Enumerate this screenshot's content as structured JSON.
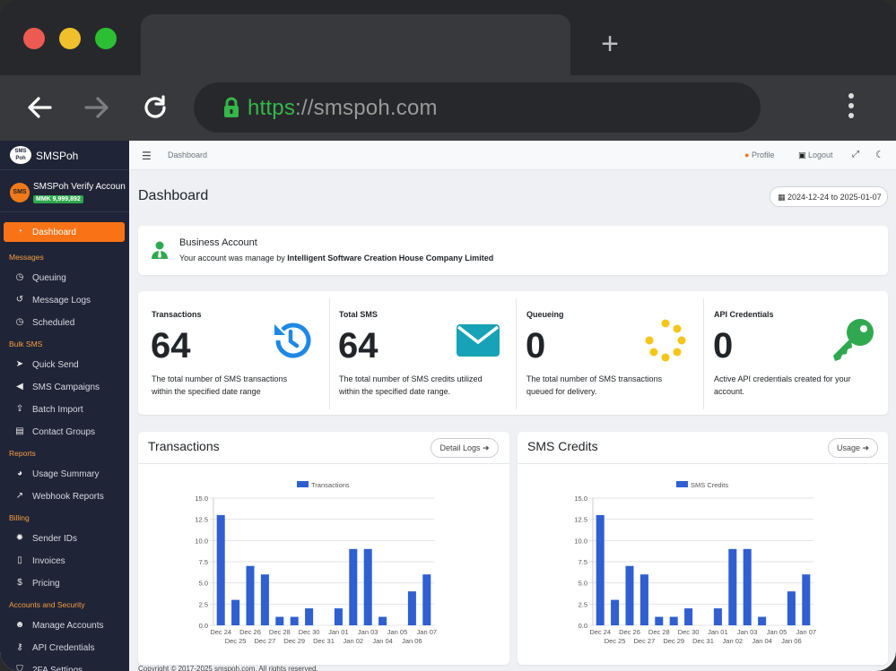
{
  "browser": {
    "url_scheme": "https",
    "url_rest": "://smspoh.com",
    "new_tab": "+"
  },
  "sidebar": {
    "brand": "SMSPoh",
    "brand_logo_text": "SMS Poh",
    "account_name": "SMSPoh Verify Accoun",
    "account_avatar": "SMS",
    "account_balance": "MMK 9,999,892",
    "items": [
      {
        "type": "item",
        "label": "Dashboard",
        "icon": "gauge-icon",
        "active": true
      },
      {
        "type": "section",
        "label": "Messages"
      },
      {
        "type": "item",
        "label": "Queuing",
        "icon": "clock-icon"
      },
      {
        "type": "item",
        "label": "Message Logs",
        "icon": "history-icon"
      },
      {
        "type": "item",
        "label": "Scheduled",
        "icon": "clock-icon"
      },
      {
        "type": "section",
        "label": "Bulk SMS"
      },
      {
        "type": "item",
        "label": "Quick Send",
        "icon": "send-icon"
      },
      {
        "type": "item",
        "label": "SMS Campaigns",
        "icon": "megaphone-icon"
      },
      {
        "type": "item",
        "label": "Batch Import",
        "icon": "upload-icon"
      },
      {
        "type": "item",
        "label": "Contact Groups",
        "icon": "contact-book-icon"
      },
      {
        "type": "section",
        "label": "Reports"
      },
      {
        "type": "item",
        "label": "Usage Summary",
        "icon": "chart-pie-icon"
      },
      {
        "type": "item",
        "label": "Webhook Reports",
        "icon": "chart-line-icon"
      },
      {
        "type": "section",
        "label": "Billing"
      },
      {
        "type": "item",
        "label": "Sender IDs",
        "icon": "gear-icon"
      },
      {
        "type": "item",
        "label": "Invoices",
        "icon": "invoice-icon"
      },
      {
        "type": "item",
        "label": "Pricing",
        "icon": "dollar-icon"
      },
      {
        "type": "section",
        "label": "Accounts and Security"
      },
      {
        "type": "item",
        "label": "Manage Accounts",
        "icon": "users-icon"
      },
      {
        "type": "item",
        "label": "API Credentials",
        "icon": "key-icon"
      },
      {
        "type": "item",
        "label": "2FA Settings",
        "icon": "shield-icon"
      }
    ]
  },
  "topbar": {
    "breadcrumb": "Dashboard",
    "profile": "Profile",
    "logout": "Logout"
  },
  "page": {
    "title": "Dashboard",
    "date_range": "2024-12-24 to 2025-01-07"
  },
  "business": {
    "title": "Business Account",
    "desc_prefix": "Your account was manage by ",
    "company": "Intelligent Software Creation House Company Limited"
  },
  "stats": [
    {
      "label": "Transactions",
      "value": "64",
      "desc": "The total number of SMS transactions within the specified date range",
      "icon": "history-icon",
      "color": "#1e88e5"
    },
    {
      "label": "Total SMS",
      "value": "64",
      "desc": "The total number of SMS credits utilized within the specified date range.",
      "icon": "envelope-icon",
      "color": "#17a2b8"
    },
    {
      "label": "Queueing",
      "value": "0",
      "desc": "The total number of SMS transactions queued for delivery.",
      "icon": "spinner-icon",
      "color": "#f5c518"
    },
    {
      "label": "API Credentials",
      "value": "0",
      "desc": "Active API credentials created for your account.",
      "icon": "key-icon",
      "color": "#2fa84f"
    }
  ],
  "charts": {
    "transactions": {
      "title": "Transactions",
      "button": "Detail Logs"
    },
    "sms_credits": {
      "title": "SMS Credits",
      "button": "Usage"
    }
  },
  "chart_data": [
    {
      "type": "bar",
      "title": "",
      "categories": [
        "Dec 24",
        "Dec 25",
        "Dec 26",
        "Dec 27",
        "Dec 28",
        "Dec 29",
        "Dec 30",
        "Dec 31",
        "Jan 01",
        "Jan 02",
        "Jan 03",
        "Jan 04",
        "Jan 05",
        "Jan 06",
        "Jan 07"
      ],
      "series": [
        {
          "name": "Transactions",
          "values": [
            13,
            3,
            7,
            6,
            1,
            1,
            2,
            0,
            2,
            9,
            9,
            1,
            0,
            4,
            6
          ]
        }
      ],
      "yticks": [
        "0.0",
        "2.5",
        "5.0",
        "7.5",
        "10.0",
        "12.5",
        "15.0"
      ],
      "ylim": [
        0,
        15
      ],
      "color": "#2f5fd0",
      "legend": "top"
    },
    {
      "type": "bar",
      "title": "",
      "categories": [
        "Dec 24",
        "Dec 25",
        "Dec 26",
        "Dec 27",
        "Dec 28",
        "Dec 29",
        "Dec 30",
        "Dec 31",
        "Jan 01",
        "Jan 02",
        "Jan 03",
        "Jan 04",
        "Jan 05",
        "Jan 06",
        "Jan 07"
      ],
      "series": [
        {
          "name": "SMS Credits",
          "values": [
            13,
            3,
            7,
            6,
            1,
            1,
            2,
            0,
            2,
            9,
            9,
            1,
            0,
            4,
            6
          ]
        }
      ],
      "yticks": [
        "0.0",
        "2.5",
        "5.0",
        "7.5",
        "10.0",
        "12.5",
        "15.0"
      ],
      "ylim": [
        0,
        15
      ],
      "color": "#2f5fd0",
      "legend": "top"
    }
  ],
  "footer": {
    "text": "Copyright © 2017-2025 smspoh.com. All rights reserved."
  }
}
